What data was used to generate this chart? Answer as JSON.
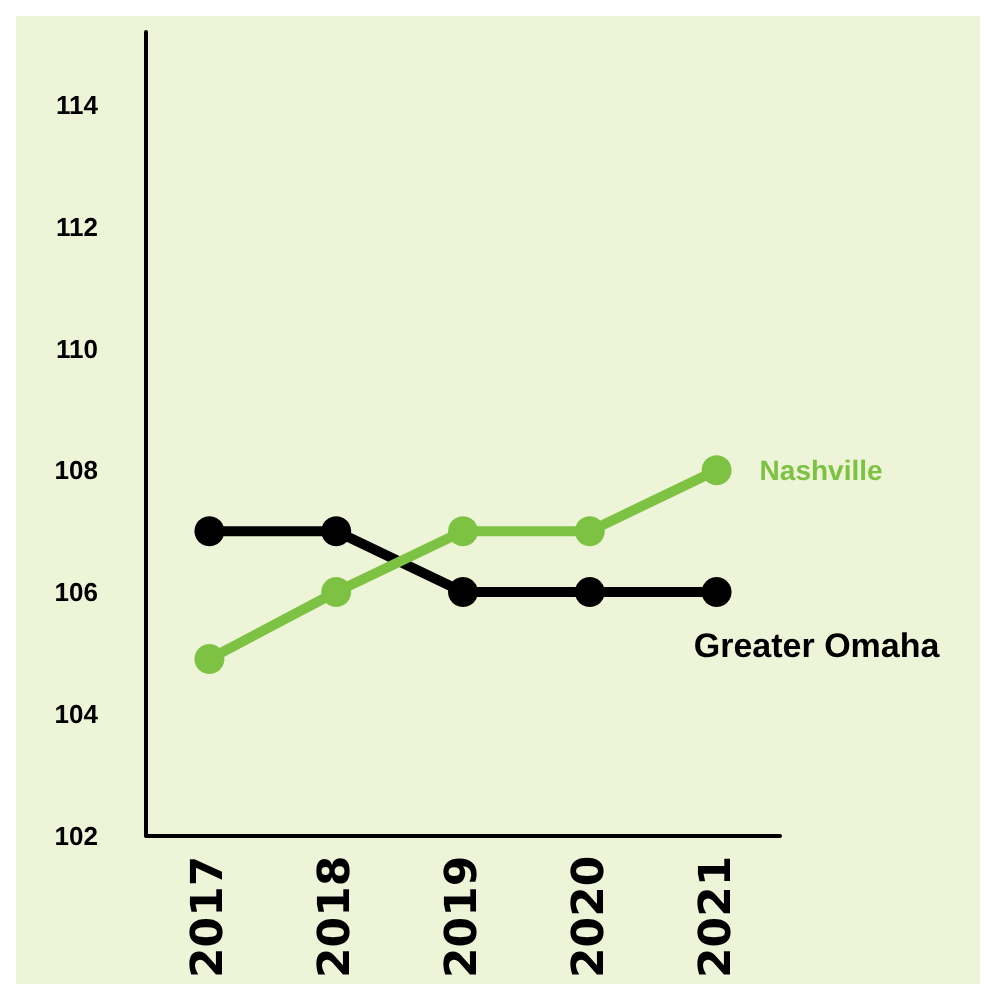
{
  "chart_data": {
    "type": "line",
    "categories": [
      "2017",
      "2018",
      "2019",
      "2020",
      "2021"
    ],
    "series": [
      {
        "name": "Greater Omaha",
        "color": "#000000",
        "values": [
          107,
          107,
          106,
          106,
          106
        ]
      },
      {
        "name": "Nashville",
        "color": "#7dc242",
        "values": [
          104.9,
          106,
          107,
          107,
          108
        ]
      }
    ],
    "ylim": [
      102,
      115.2
    ],
    "yticks": [
      102,
      104,
      106,
      108,
      110,
      112,
      114
    ],
    "grid": false,
    "legend": false,
    "marker": "circle",
    "line_style": "solid"
  }
}
